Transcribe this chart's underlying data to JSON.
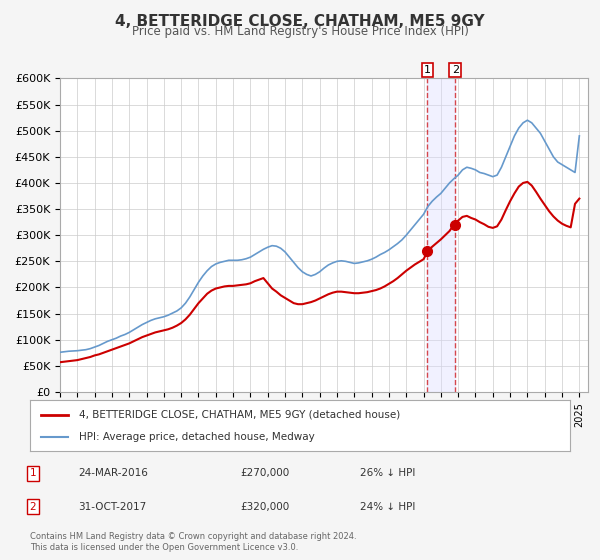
{
  "title": "4, BETTERIDGE CLOSE, CHATHAM, ME5 9GY",
  "subtitle": "Price paid vs. HM Land Registry's House Price Index (HPI)",
  "ylabel": "",
  "ylim": [
    0,
    600000
  ],
  "yticks": [
    0,
    50000,
    100000,
    150000,
    200000,
    250000,
    300000,
    350000,
    400000,
    450000,
    500000,
    550000,
    600000
  ],
  "ytick_labels": [
    "£0",
    "£50K",
    "£100K",
    "£150K",
    "£200K",
    "£250K",
    "£300K",
    "£350K",
    "£400K",
    "£450K",
    "£500K",
    "£550K",
    "£600K"
  ],
  "xlim_start": 1995.0,
  "xlim_end": 2025.5,
  "xticks": [
    1995,
    1996,
    1997,
    1998,
    1999,
    2000,
    2001,
    2002,
    2003,
    2004,
    2005,
    2006,
    2007,
    2008,
    2009,
    2010,
    2011,
    2012,
    2013,
    2014,
    2015,
    2016,
    2017,
    2018,
    2019,
    2020,
    2021,
    2022,
    2023,
    2024,
    2025
  ],
  "background_color": "#f5f5f5",
  "plot_bg_color": "#ffffff",
  "grid_color": "#cccccc",
  "red_line_color": "#cc0000",
  "blue_line_color": "#6699cc",
  "sale1_x": 2016.22,
  "sale1_y": 270000,
  "sale2_x": 2017.83,
  "sale2_y": 320000,
  "legend1_label": "4, BETTERIDGE CLOSE, CHATHAM, ME5 9GY (detached house)",
  "legend2_label": "HPI: Average price, detached house, Medway",
  "annot1_num": "1",
  "annot1_date": "24-MAR-2016",
  "annot1_price": "£270,000",
  "annot1_hpi": "26% ↓ HPI",
  "annot2_num": "2",
  "annot2_date": "31-OCT-2017",
  "annot2_price": "£320,000",
  "annot2_hpi": "24% ↓ HPI",
  "footnote": "Contains HM Land Registry data © Crown copyright and database right 2024.\nThis data is licensed under the Open Government Licence v3.0.",
  "hpi_data_x": [
    1995.0,
    1995.25,
    1995.5,
    1995.75,
    1996.0,
    1996.25,
    1996.5,
    1996.75,
    1997.0,
    1997.25,
    1997.5,
    1997.75,
    1998.0,
    1998.25,
    1998.5,
    1998.75,
    1999.0,
    1999.25,
    1999.5,
    1999.75,
    2000.0,
    2000.25,
    2000.5,
    2000.75,
    2001.0,
    2001.25,
    2001.5,
    2001.75,
    2002.0,
    2002.25,
    2002.5,
    2002.75,
    2003.0,
    2003.25,
    2003.5,
    2003.75,
    2004.0,
    2004.25,
    2004.5,
    2004.75,
    2005.0,
    2005.25,
    2005.5,
    2005.75,
    2006.0,
    2006.25,
    2006.5,
    2006.75,
    2007.0,
    2007.25,
    2007.5,
    2007.75,
    2008.0,
    2008.25,
    2008.5,
    2008.75,
    2009.0,
    2009.25,
    2009.5,
    2009.75,
    2010.0,
    2010.25,
    2010.5,
    2010.75,
    2011.0,
    2011.25,
    2011.5,
    2011.75,
    2012.0,
    2012.25,
    2012.5,
    2012.75,
    2013.0,
    2013.25,
    2013.5,
    2013.75,
    2014.0,
    2014.25,
    2014.5,
    2014.75,
    2015.0,
    2015.25,
    2015.5,
    2015.75,
    2016.0,
    2016.25,
    2016.5,
    2016.75,
    2017.0,
    2017.25,
    2017.5,
    2017.75,
    2018.0,
    2018.25,
    2018.5,
    2018.75,
    2019.0,
    2019.25,
    2019.5,
    2019.75,
    2020.0,
    2020.25,
    2020.5,
    2020.75,
    2021.0,
    2021.25,
    2021.5,
    2021.75,
    2022.0,
    2022.25,
    2022.5,
    2022.75,
    2023.0,
    2023.25,
    2023.5,
    2023.75,
    2024.0,
    2024.25,
    2024.5,
    2024.75,
    2025.0
  ],
  "hpi_data_y": [
    76000,
    77000,
    78000,
    78500,
    79000,
    80000,
    81000,
    83000,
    86000,
    89000,
    93000,
    97000,
    100000,
    103000,
    107000,
    110000,
    114000,
    119000,
    124000,
    129000,
    133000,
    137000,
    140000,
    142000,
    144000,
    147000,
    151000,
    155000,
    161000,
    170000,
    182000,
    196000,
    210000,
    222000,
    232000,
    240000,
    245000,
    248000,
    250000,
    252000,
    252000,
    252000,
    253000,
    255000,
    258000,
    263000,
    268000,
    273000,
    277000,
    280000,
    279000,
    275000,
    268000,
    258000,
    248000,
    238000,
    230000,
    225000,
    222000,
    225000,
    230000,
    237000,
    243000,
    247000,
    250000,
    251000,
    250000,
    248000,
    246000,
    247000,
    249000,
    251000,
    254000,
    258000,
    263000,
    267000,
    272000,
    278000,
    284000,
    291000,
    300000,
    310000,
    320000,
    330000,
    340000,
    355000,
    365000,
    373000,
    380000,
    390000,
    400000,
    408000,
    415000,
    425000,
    430000,
    428000,
    425000,
    420000,
    418000,
    415000,
    412000,
    415000,
    430000,
    450000,
    470000,
    490000,
    505000,
    515000,
    520000,
    515000,
    505000,
    495000,
    480000,
    465000,
    450000,
    440000,
    435000,
    430000,
    425000,
    420000,
    490000
  ],
  "red_data_x": [
    1995.0,
    1995.25,
    1995.5,
    1995.75,
    1996.0,
    1996.25,
    1996.5,
    1996.75,
    1997.0,
    1997.25,
    1997.5,
    1997.75,
    1998.0,
    1998.25,
    1998.5,
    1998.75,
    1999.0,
    1999.25,
    1999.5,
    1999.75,
    2000.0,
    2000.25,
    2000.5,
    2000.75,
    2001.0,
    2001.25,
    2001.5,
    2001.75,
    2002.0,
    2002.25,
    2002.5,
    2002.75,
    2003.0,
    2003.25,
    2003.5,
    2003.75,
    2004.0,
    2004.25,
    2004.5,
    2004.75,
    2005.0,
    2005.25,
    2005.5,
    2005.75,
    2006.0,
    2006.25,
    2006.5,
    2006.75,
    2007.0,
    2007.25,
    2007.5,
    2007.75,
    2008.0,
    2008.25,
    2008.5,
    2008.75,
    2009.0,
    2009.25,
    2009.5,
    2009.75,
    2010.0,
    2010.25,
    2010.5,
    2010.75,
    2011.0,
    2011.25,
    2011.5,
    2011.75,
    2012.0,
    2012.25,
    2012.5,
    2012.75,
    2013.0,
    2013.25,
    2013.5,
    2013.75,
    2014.0,
    2014.25,
    2014.5,
    2014.75,
    2015.0,
    2015.25,
    2015.5,
    2015.75,
    2016.0,
    2016.25,
    2016.5,
    2016.75,
    2017.0,
    2017.25,
    2017.5,
    2017.75,
    2018.0,
    2018.25,
    2018.5,
    2018.75,
    2019.0,
    2019.25,
    2019.5,
    2019.75,
    2020.0,
    2020.25,
    2020.5,
    2020.75,
    2021.0,
    2021.25,
    2021.5,
    2021.75,
    2022.0,
    2022.25,
    2022.5,
    2022.75,
    2023.0,
    2023.25,
    2023.5,
    2023.75,
    2024.0,
    2024.25,
    2024.5,
    2024.75,
    2025.0
  ],
  "red_data_y": [
    57000,
    58000,
    59000,
    60000,
    61000,
    63000,
    65000,
    67000,
    70000,
    72000,
    75000,
    78000,
    81000,
    84000,
    87000,
    90000,
    93000,
    97000,
    101000,
    105000,
    108000,
    111000,
    114000,
    116000,
    118000,
    120000,
    123000,
    127000,
    132000,
    139000,
    148000,
    159000,
    170000,
    179000,
    188000,
    194000,
    198000,
    200000,
    202000,
    203000,
    203000,
    204000,
    205000,
    206000,
    208000,
    212000,
    215000,
    218000,
    208000,
    198000,
    192000,
    185000,
    180000,
    175000,
    170000,
    168000,
    168000,
    170000,
    172000,
    175000,
    179000,
    183000,
    187000,
    190000,
    192000,
    192000,
    191000,
    190000,
    189000,
    189000,
    190000,
    191000,
    193000,
    195000,
    198000,
    202000,
    207000,
    212000,
    218000,
    225000,
    232000,
    238000,
    244000,
    249000,
    254000,
    270000,
    278000,
    285000,
    292000,
    300000,
    308000,
    320000,
    328000,
    335000,
    337000,
    333000,
    330000,
    325000,
    321000,
    316000,
    314000,
    317000,
    330000,
    348000,
    365000,
    380000,
    393000,
    400000,
    402000,
    395000,
    383000,
    370000,
    358000,
    346000,
    336000,
    328000,
    322000,
    318000,
    315000,
    360000,
    370000
  ]
}
